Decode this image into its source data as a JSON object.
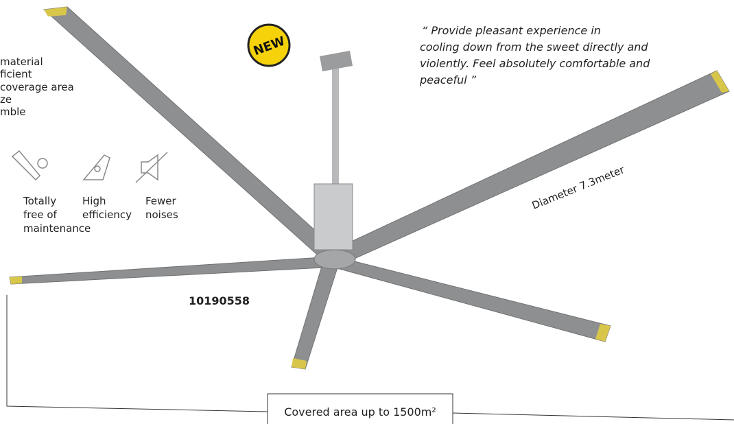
{
  "badge": "NEW",
  "quote": [
    "“ Provide pleasant experience in",
    "cooling down from the sweet directly and",
    "violently. Feel absolutely comfortable and",
    "peaceful ”"
  ],
  "features": [
    "material",
    "ficient",
    "coverage area",
    "ze",
    "mble"
  ],
  "icons": [
    {
      "label": [
        "Totally",
        "free of",
        "maintenance"
      ]
    },
    {
      "label": [
        "High",
        "efficiency"
      ]
    },
    {
      "label": [
        "Fewer",
        "noises"
      ]
    }
  ],
  "diameter": "Diameter 7.3meter",
  "model": "10190558",
  "coverage": "Covered area up to 1500m²"
}
